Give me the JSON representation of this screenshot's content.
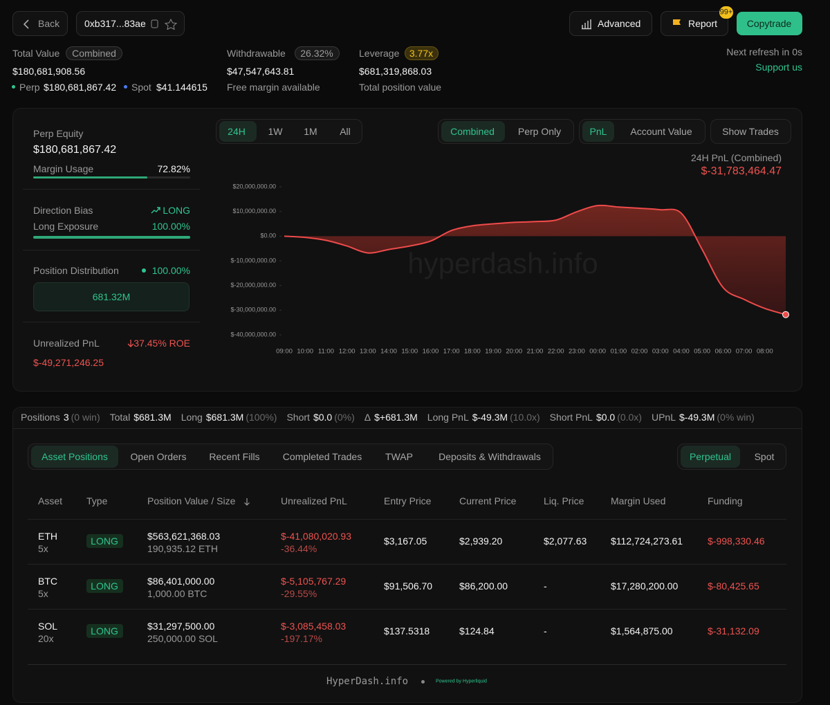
{
  "header": {
    "back": "Back",
    "address": "0xb317...83ae",
    "advanced": "Advanced",
    "report": "Report",
    "badge": "99+",
    "copytrade": "Copytrade"
  },
  "summary": {
    "total_value": {
      "label": "Total Value",
      "tag": "Combined",
      "value": "$180,681,908.56",
      "perp_label": "Perp",
      "perp_value": "$180,681,867.42",
      "spot_label": "Spot",
      "spot_value": "$41.144615"
    },
    "withdrawable": {
      "label": "Withdrawable",
      "tag": "26.32%",
      "value": "$47,547,643.81",
      "note": "Free margin available"
    },
    "leverage": {
      "label": "Leverage",
      "tag": "3.77x",
      "value": "$681,319,868.03",
      "note": "Total position value"
    },
    "refresh": "Next refresh in 0s",
    "support": "Support us"
  },
  "side": {
    "perp_equity_label": "Perp Equity",
    "perp_equity": "$180,681,867.42",
    "margin_usage_label": "Margin Usage",
    "margin_usage": "72.82%",
    "direction_bias_label": "Direction Bias",
    "direction_bias": "LONG",
    "long_exposure_label": "Long Exposure",
    "long_exposure": "100.00%",
    "position_distribution_label": "Position Distribution",
    "position_distribution": "100.00%",
    "distribution_bar": "681.32M",
    "unrealized_pnl_label": "Unrealized PnL",
    "roe": "37.45% ROE",
    "unrealized_pnl": "$-49,271,246.25"
  },
  "chart_controls": {
    "ranges": [
      "24H",
      "1W",
      "1M",
      "All"
    ],
    "scopes": [
      "Combined",
      "Perp Only"
    ],
    "metrics": [
      "PnL",
      "Account Value"
    ],
    "show_trades": "Show Trades"
  },
  "chart_data": {
    "type": "area",
    "title": "24H PnL (Combined)",
    "subtitle": "$-31,783,464.47",
    "watermark": "hyperdash.info",
    "color": "#ef4b4b",
    "categories": [
      "09:00",
      "10:00",
      "11:00",
      "12:00",
      "13:00",
      "14:00",
      "15:00",
      "16:00",
      "17:00",
      "18:00",
      "19:00",
      "20:00",
      "21:00",
      "22:00",
      "23:00",
      "00:00",
      "01:00",
      "02:00",
      "03:00",
      "04:00",
      "05:00",
      "06:00",
      "07:00",
      "08:00",
      null
    ],
    "values": [
      0,
      -500000,
      -1700000,
      -4000000,
      -6800000,
      -5400000,
      -4000000,
      -2000000,
      2300000,
      4200000,
      5000000,
      5600000,
      5900000,
      6500000,
      9900000,
      12400000,
      11800000,
      11300000,
      10700000,
      9300000,
      -5400000,
      -20800000,
      -25600000,
      -29300000,
      -31783464.47
    ],
    "ylim": [
      -40000000,
      20000000
    ],
    "yticks": [
      {
        "value": 20000000,
        "label": "$20,000,000.00"
      },
      {
        "value": 10000000,
        "label": "$10,000,000.00"
      },
      {
        "value": 0,
        "label": "$0.00"
      },
      {
        "value": -10000000,
        "label": "$-10,000,000.00"
      },
      {
        "value": -20000000,
        "label": "$-20,000,000.00"
      },
      {
        "value": -30000000,
        "label": "$-30,000,000.00"
      },
      {
        "value": -40000000,
        "label": "$-40,000,000.00"
      }
    ]
  },
  "stats": [
    {
      "label": "Positions",
      "value": "3",
      "note": "(0 win)"
    },
    {
      "label": "Total",
      "value": "$681.3M"
    },
    {
      "label": "Long",
      "value": "$681.3M",
      "note": "(100%)"
    },
    {
      "label": "Short",
      "value": "$0.0",
      "note": "(0%)"
    },
    {
      "label": "Δ",
      "value": "$+681.3M"
    },
    {
      "label": "Long PnL",
      "value": "$-49.3M",
      "note": "(10.0x)"
    },
    {
      "label": "Short PnL",
      "value": "$0.0",
      "note": "(0.0x)"
    },
    {
      "label": "UPnL",
      "value": "$-49.3M",
      "note": "(0% win)"
    }
  ],
  "tabs": [
    "Asset Positions",
    "Open Orders",
    "Recent Fills",
    "Completed Trades",
    "TWAP",
    "Deposits & Withdrawals"
  ],
  "market_tabs": [
    "Perpetual",
    "Spot"
  ],
  "table": {
    "columns": [
      "Asset",
      "Type",
      "Position Value / Size",
      "Unrealized PnL",
      "Entry Price",
      "Current Price",
      "Liq. Price",
      "Margin Used",
      "Funding"
    ],
    "rows": [
      [
        "ETH",
        "5x",
        "LONG",
        "$563,621,368.03",
        "190,935.12 ETH",
        "$-41,080,020.93",
        "-36.44%",
        "$3,167.05",
        "$2,939.20",
        "$2,077.63",
        "$112,724,273.61",
        "$-998,330.46"
      ],
      [
        "BTC",
        "5x",
        "LONG",
        "$86,401,000.00",
        "1,000.00 BTC",
        "$-5,105,767.29",
        "-29.55%",
        "$91,506.70",
        "$86,200.00",
        "-",
        "$17,280,200.00",
        "$-80,425.65"
      ],
      [
        "SOL",
        "20x",
        "LONG",
        "$31,297,500.00",
        "250,000.00 SOL",
        "$-3,085,458.03",
        "-197.17%",
        "$137.5318",
        "$124.84",
        "-",
        "$1,564,875.00",
        "$-31,132.09"
      ]
    ]
  },
  "footer": {
    "brand": "HyperDash.info",
    "powered": "Powered by Hyperliquid"
  }
}
